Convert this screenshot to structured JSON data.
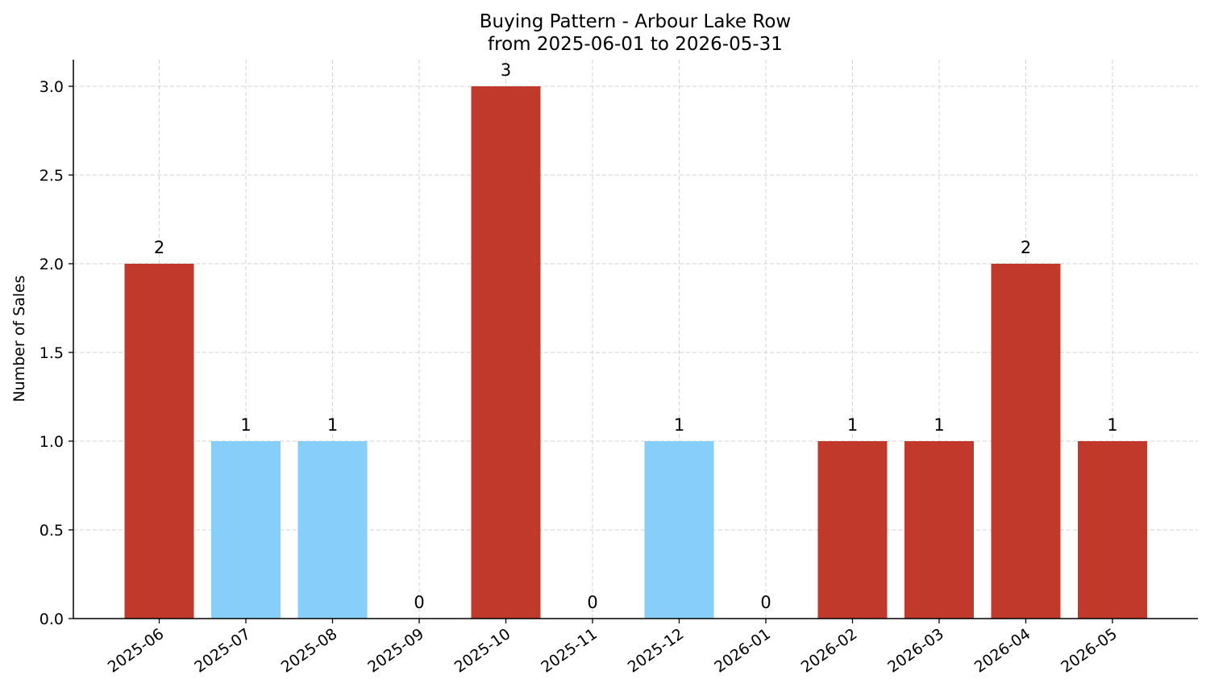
{
  "chart_data": {
    "type": "bar",
    "title_lines": [
      "Buying Pattern - Arbour Lake Row",
      "from 2025-06-01 to 2026-05-31"
    ],
    "xlabel": "",
    "ylabel": "Number of Sales",
    "categories": [
      "2025-06",
      "2025-07",
      "2025-08",
      "2025-09",
      "2025-10",
      "2025-11",
      "2025-12",
      "2026-01",
      "2026-02",
      "2026-03",
      "2026-04",
      "2026-05"
    ],
    "values": [
      2,
      1,
      1,
      0,
      3,
      0,
      1,
      0,
      1,
      1,
      2,
      1
    ],
    "bar_colors": [
      "#c0392b",
      "#87cefa",
      "#87cefa",
      "#c0392b",
      "#c0392b",
      "#c0392b",
      "#87cefa",
      "#c0392b",
      "#c0392b",
      "#c0392b",
      "#c0392b",
      "#c0392b"
    ],
    "y_ticks": [
      "0.0",
      "0.5",
      "1.0",
      "1.5",
      "2.0",
      "2.5",
      "3.0"
    ],
    "ylim": [
      0,
      3.15
    ],
    "grid": true,
    "data_labels": true,
    "x_tick_rotation_deg": 35
  }
}
